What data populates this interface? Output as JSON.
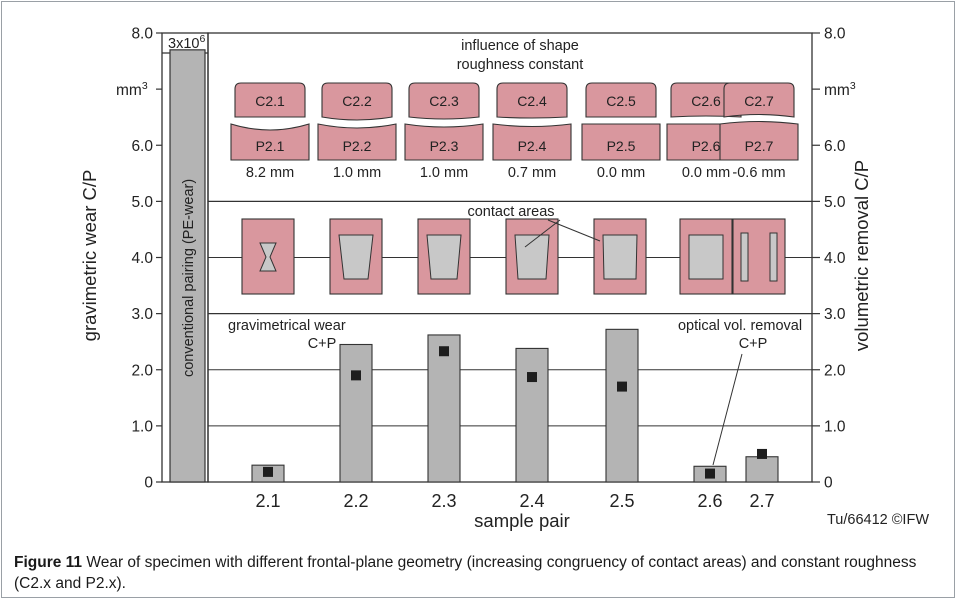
{
  "chart_data": {
    "type": "bar",
    "categories": [
      "2.1",
      "2.2",
      "2.3",
      "2.4",
      "2.5",
      "2.6",
      "2.7"
    ],
    "series": [
      {
        "name": "gravimetrical wear C+P",
        "values": [
          0.3,
          2.45,
          2.62,
          2.38,
          2.72,
          0.28,
          0.45
        ]
      },
      {
        "name": "optical vol. removal C+P",
        "values": [
          0.18,
          1.9,
          2.33,
          1.87,
          1.7,
          0.15,
          0.5
        ]
      }
    ],
    "reference_bar": {
      "label": "conventional pairing (PE-wear)",
      "value": 7.7,
      "scale_label": "3x10",
      "scale_exponent": "6"
    },
    "xlabel": "sample pair",
    "ylabel_left": "gravimetric wear C/P",
    "ylabel_right": "volumetric removal C/P",
    "ylim": [
      0,
      8
    ],
    "y_ticks_left": [
      "0",
      "1.0",
      "2.0",
      "3.0",
      "4.0",
      "5.0",
      "6.0",
      "8.0"
    ],
    "y_ticks_right": [
      "0",
      "1.0",
      "2.0",
      "3.0",
      "4.0",
      "5.0",
      "6.0",
      "8.0"
    ],
    "left_unit": "mm",
    "right_unit": "mm",
    "unit_exponent": "3",
    "shape_heading": [
      "influence of shape",
      "roughness constant"
    ],
    "c_labels": [
      "C2.1",
      "C2.2",
      "C2.3",
      "C2.4",
      "C2.5",
      "C2.6",
      "C2.7"
    ],
    "p_labels": [
      "P2.1",
      "P2.2",
      "P2.3",
      "P2.4",
      "P2.5",
      "P2.6",
      "P2.7"
    ],
    "mm_values": [
      "8.2  mm",
      "1.0 mm",
      "1.0 mm",
      "0.7 mm",
      "0.0 mm",
      "0.0 mm",
      "-0.6 mm"
    ],
    "contact_label": "contact areas",
    "gravimetric_annotation": [
      "gravimetrical wear",
      "C+P"
    ],
    "optical_annotation": [
      "optical vol. removal",
      "C+P"
    ],
    "credit": "Tu/66412 ©IFW",
    "colors": {
      "bar": "#b4b4b4",
      "marker": "#1e1e1e",
      "specimen": "#d9979e",
      "contact": "#c8c8c8",
      "line": "#333333"
    }
  },
  "caption": {
    "label": "Figure 11",
    "text": " Wear of specimen with different frontal-plane geometry (increasing congruency of contact areas) and constant roughness (C2.x and P2.x)."
  }
}
